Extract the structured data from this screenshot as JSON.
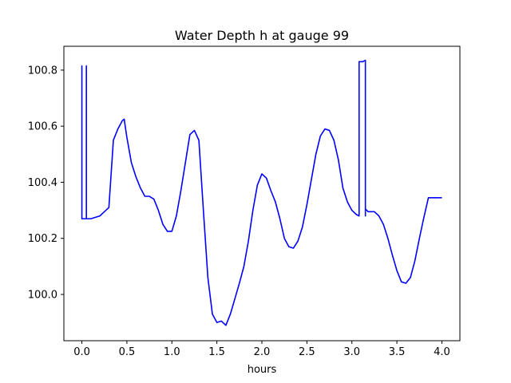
{
  "chart_data": {
    "type": "line",
    "title": "Water Depth h at gauge 99",
    "xlabel": "hours",
    "ylabel": "",
    "xlim": [
      -0.2,
      4.2
    ],
    "ylim": [
      99.835,
      100.885
    ],
    "x_ticks": [
      0.0,
      0.5,
      1.0,
      1.5,
      2.0,
      2.5,
      3.0,
      3.5,
      4.0
    ],
    "x_tick_labels": [
      "0.0",
      "0.5",
      "1.0",
      "1.5",
      "2.0",
      "2.5",
      "3.0",
      "3.5",
      "4.0"
    ],
    "y_ticks": [
      100.0,
      100.2,
      100.4,
      100.6,
      100.8
    ],
    "y_tick_labels": [
      "100.0",
      "100.2",
      "100.4",
      "100.6",
      "100.8"
    ],
    "grid": false,
    "colors": {
      "line": "#0000ff"
    },
    "series": [
      {
        "x": [
          0.0,
          0.0,
          0.0,
          0.05,
          0.05,
          0.05,
          0.1,
          0.2,
          0.3,
          0.35,
          0.4,
          0.45,
          0.47,
          0.5,
          0.55,
          0.6,
          0.65,
          0.7,
          0.75,
          0.8,
          0.85,
          0.9,
          0.95,
          1.0,
          1.05,
          1.1,
          1.15,
          1.2,
          1.25,
          1.3,
          1.35,
          1.4,
          1.45,
          1.5,
          1.55,
          1.6,
          1.65,
          1.7,
          1.75,
          1.8,
          1.85,
          1.9,
          1.95,
          2.0,
          2.05,
          2.1,
          2.15,
          2.2,
          2.25,
          2.3,
          2.35,
          2.4,
          2.45,
          2.5,
          2.55,
          2.6,
          2.65,
          2.7,
          2.75,
          2.8,
          2.85,
          2.9,
          2.95,
          3.0,
          3.05,
          3.08,
          3.08,
          3.12,
          3.15,
          3.15,
          3.15,
          3.18,
          3.2,
          3.25,
          3.3,
          3.35,
          3.4,
          3.45,
          3.5,
          3.55,
          3.6,
          3.65,
          3.7,
          3.75,
          3.8,
          3.85,
          3.9,
          3.95,
          4.0
        ],
        "y": [
          100.27,
          100.815,
          100.27,
          100.27,
          100.815,
          100.27,
          100.27,
          100.28,
          100.31,
          100.55,
          100.59,
          100.62,
          100.625,
          100.56,
          100.47,
          100.42,
          100.38,
          100.35,
          100.35,
          100.34,
          100.3,
          100.25,
          100.225,
          100.225,
          100.28,
          100.37,
          100.47,
          100.57,
          100.585,
          100.55,
          100.3,
          100.06,
          99.93,
          99.9,
          99.905,
          99.89,
          99.93,
          99.985,
          100.04,
          100.1,
          100.19,
          100.3,
          100.39,
          100.43,
          100.415,
          100.37,
          100.33,
          100.27,
          100.2,
          100.17,
          100.165,
          100.19,
          100.24,
          100.32,
          100.41,
          100.5,
          100.565,
          100.59,
          100.585,
          100.55,
          100.48,
          100.38,
          100.33,
          100.3,
          100.285,
          100.28,
          100.83,
          100.83,
          100.835,
          100.28,
          100.305,
          100.295,
          100.295,
          100.295,
          100.28,
          100.25,
          100.2,
          100.14,
          100.085,
          100.045,
          100.04,
          100.06,
          100.12,
          100.2,
          100.275,
          100.345,
          100.345,
          100.345,
          100.345
        ]
      }
    ]
  }
}
